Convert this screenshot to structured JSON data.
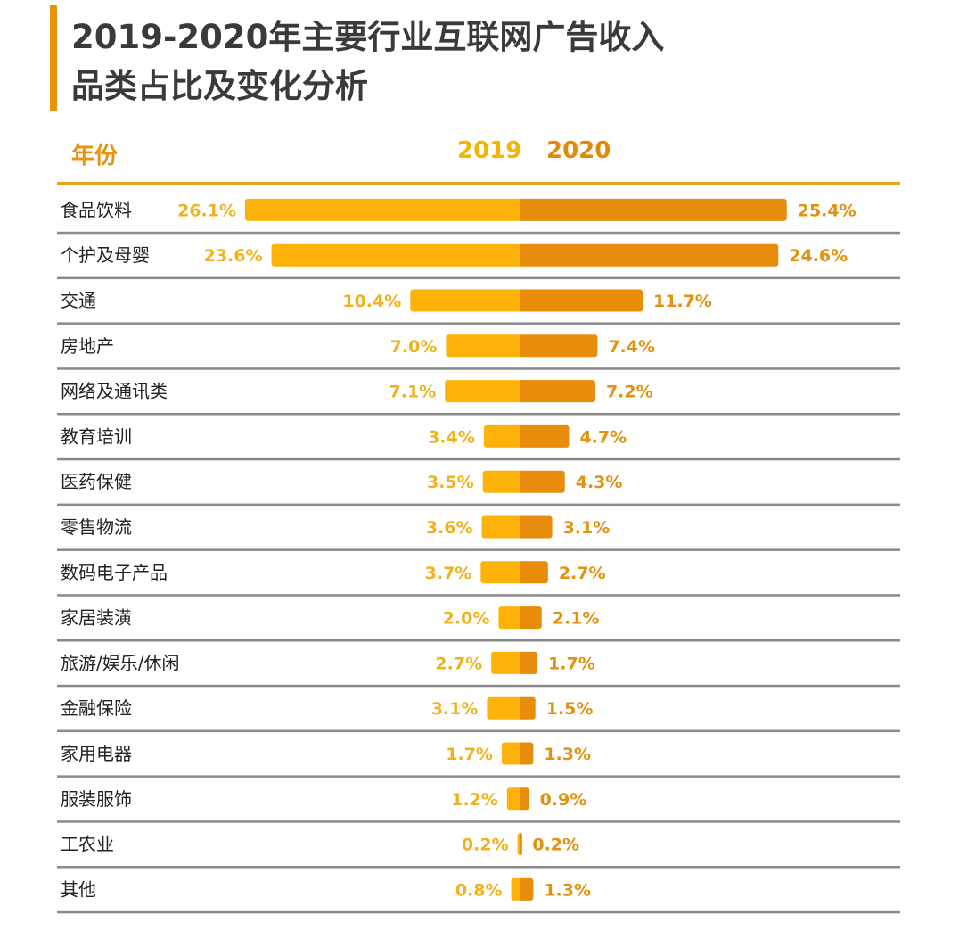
{
  "title_lines": [
    "2019-2020年主要行业互联网广告收入",
    "品类占比及变化分析"
  ],
  "header": {
    "category_label": "年份",
    "year_a": "2019",
    "year_b": "2020"
  },
  "colors": {
    "accent": "#e8920f",
    "bar_2019": "#fdb20a",
    "bar_2020": "#e88c0c",
    "divider": "#8a8a8a"
  },
  "chart_data": {
    "type": "bar",
    "orientation": "horizontal-diverging",
    "title": "2019-2020年主要行业互联网广告收入品类占比及变化分析",
    "unit": "%",
    "categories": [
      "食品饮料",
      "个护及母婴",
      "交通",
      "房地产",
      "网络及通讯类",
      "教育培训",
      "医药保健",
      "零售物流",
      "数码电子产品",
      "家居装潢",
      "旅游/娱乐/休闲",
      "金融保险",
      "家用电器",
      "服装服饰",
      "工农业",
      "其他"
    ],
    "series": [
      {
        "name": "2019",
        "values": [
          26.1,
          23.6,
          10.4,
          7.0,
          7.1,
          3.4,
          3.5,
          3.6,
          3.7,
          2.0,
          2.7,
          3.1,
          1.7,
          1.2,
          0.2,
          0.8
        ]
      },
      {
        "name": "2020",
        "values": [
          25.4,
          24.6,
          11.7,
          7.4,
          7.2,
          4.7,
          4.3,
          3.1,
          2.7,
          2.1,
          1.7,
          1.5,
          1.3,
          0.9,
          0.2,
          1.3
        ]
      }
    ],
    "legend": [
      "2019",
      "2020"
    ],
    "legend_placement": "top-center",
    "grid": false
  }
}
